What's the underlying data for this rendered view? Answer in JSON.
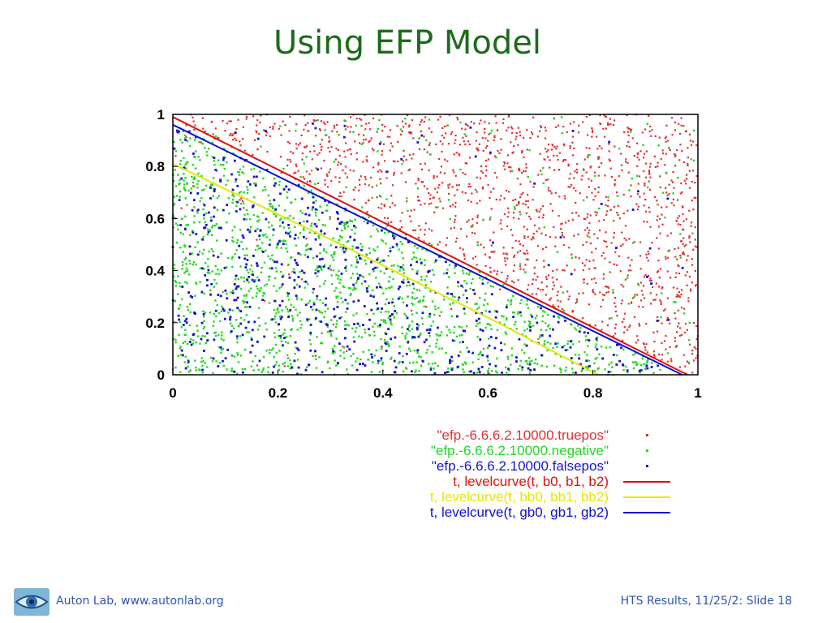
{
  "slide": {
    "title": "Using EFP Model"
  },
  "footer": {
    "left_text": "Auton Lab, www.autonlab.org",
    "right_text": "HTS Results, 11/25/2: Slide 18",
    "logo_icon": "eye-icon"
  },
  "colors": {
    "title": "#1c6b1c",
    "footer": "#2b55b5",
    "truepos": "#e03030",
    "negative": "#22d822",
    "falsepos": "#1616c8",
    "levelcurve_b": "#e01010",
    "levelcurve_bb": "#e6e600",
    "levelcurve_gb": "#1010d0"
  },
  "chart_data": {
    "type": "scatter",
    "title": "",
    "xlabel": "",
    "ylabel": "",
    "xlim": [
      0,
      1
    ],
    "ylim": [
      0,
      1
    ],
    "x_ticks": [
      "0",
      "0.2",
      "0.4",
      "0.6",
      "0.8",
      "1"
    ],
    "y_ticks": [
      "0",
      "0.2",
      "0.4",
      "0.6",
      "0.8",
      "1"
    ],
    "grid": false,
    "legend_position": "below",
    "series": [
      {
        "name": "\"efp.-6.6.6.2.10000.truepos\"",
        "kind": "points",
        "color": "#e03030",
        "region": "above line x + y = 0.97",
        "approx_count": 1500
      },
      {
        "name": "\"efp.-6.6.6.2.10000.negative\"",
        "kind": "points",
        "color": "#22d822",
        "region": "below line x + y = 0.97, sparse above",
        "approx_count": 1700
      },
      {
        "name": "\"efp.-6.6.6.2.10000.falsepos\"",
        "kind": "points",
        "color": "#1616c8",
        "region": "mostly below line x + y = 0.97, sparse above",
        "approx_count": 600
      },
      {
        "name": "t, levelcurve(t, b0, b1, b2)",
        "kind": "line",
        "color": "#e01010",
        "x": [
          0,
          0.98
        ],
        "y": [
          0.99,
          0
        ]
      },
      {
        "name": "t, levelcurve(t, bb0, bb1, bb2)",
        "kind": "line",
        "color": "#e6e600",
        "x": [
          0,
          0.3,
          0.6,
          0.81
        ],
        "y": [
          0.81,
          0.52,
          0.22,
          0
        ]
      },
      {
        "name": "t, levelcurve(t, gb0, gb1, gb2)",
        "kind": "line",
        "color": "#1010d0",
        "x": [
          0,
          0.97
        ],
        "y": [
          0.96,
          0
        ]
      }
    ]
  }
}
